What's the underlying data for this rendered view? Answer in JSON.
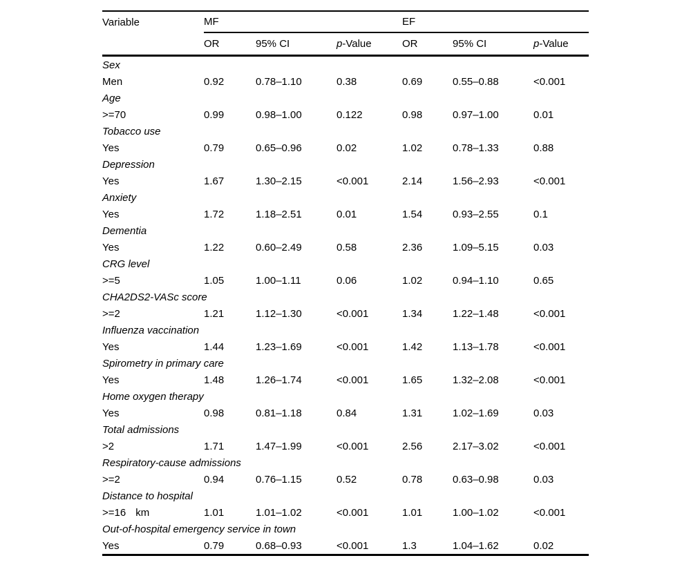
{
  "table": {
    "variable_header": "Variable",
    "group_headers": [
      "MF",
      "EF"
    ],
    "sub_headers": [
      {
        "text": "OR"
      },
      {
        "text": "95% CI"
      },
      {
        "italic": "p",
        "text": "-Value"
      },
      {
        "text": "OR"
      },
      {
        "text": "95% CI"
      },
      {
        "italic": "p",
        "text": "-Value"
      }
    ],
    "groups": [
      {
        "variable": "Sex",
        "level": "Men",
        "mf": {
          "or": "0.92",
          "ci": "0.78–1.10",
          "p": "0.38"
        },
        "ef": {
          "or": "0.69",
          "ci": "0.55–0.88",
          "p": "<0.001"
        }
      },
      {
        "variable": "Age",
        "level": ">=70",
        "mf": {
          "or": "0.99",
          "ci": "0.98–1.00",
          "p": "0.122"
        },
        "ef": {
          "or": "0.98",
          "ci": "0.97–1.00",
          "p": "0.01"
        }
      },
      {
        "variable": "Tobacco use",
        "level": "Yes",
        "mf": {
          "or": "0.79",
          "ci": "0.65–0.96",
          "p": "0.02"
        },
        "ef": {
          "or": "1.02",
          "ci": "0.78–1.33",
          "p": "0.88"
        }
      },
      {
        "variable": "Depression",
        "level": "Yes",
        "mf": {
          "or": "1.67",
          "ci": "1.30–2.15",
          "p": "<0.001"
        },
        "ef": {
          "or": "2.14",
          "ci": "1.56–2.93",
          "p": "<0.001"
        }
      },
      {
        "variable": "Anxiety",
        "level": "Yes",
        "mf": {
          "or": "1.72",
          "ci": "1.18–2.51",
          "p": "0.01"
        },
        "ef": {
          "or": "1.54",
          "ci": "0.93–2.55",
          "p": "0.1"
        }
      },
      {
        "variable": "Dementia",
        "level": "Yes",
        "mf": {
          "or": "1.22",
          "ci": "0.60–2.49",
          "p": "0.58"
        },
        "ef": {
          "or": "2.36",
          "ci": "1.09–5.15",
          "p": "0.03"
        }
      },
      {
        "variable": "CRG level",
        "level": ">=5",
        "mf": {
          "or": "1.05",
          "ci": "1.00–1.11",
          "p": "0.06"
        },
        "ef": {
          "or": "1.02",
          "ci": "0.94–1.10",
          "p": "0.65"
        }
      },
      {
        "variable": "CHA2DS2-VASc score",
        "level": ">=2",
        "mf": {
          "or": "1.21",
          "ci": "1.12–1.30",
          "p": "<0.001"
        },
        "ef": {
          "or": "1.34",
          "ci": "1.22–1.48",
          "p": "<0.001"
        }
      },
      {
        "variable": "Influenza vaccination",
        "level": "Yes",
        "mf": {
          "or": "1.44",
          "ci": "1.23–1.69",
          "p": "<0.001"
        },
        "ef": {
          "or": "1.42",
          "ci": "1.13–1.78",
          "p": "<0.001"
        }
      },
      {
        "variable": "Spirometry in primary care",
        "level": "Yes",
        "mf": {
          "or": "1.48",
          "ci": "1.26–1.74",
          "p": "<0.001"
        },
        "ef": {
          "or": "1.65",
          "ci": "1.32–2.08",
          "p": "<0.001"
        }
      },
      {
        "variable": "Home oxygen therapy",
        "level": "Yes",
        "mf": {
          "or": "0.98",
          "ci": "0.81–1.18",
          "p": "0.84"
        },
        "ef": {
          "or": "1.31",
          "ci": "1.02–1.69",
          "p": "0.03"
        }
      },
      {
        "variable": "Total admissions",
        "level": ">2",
        "mf": {
          "or": "1.71",
          "ci": "1.47–1.99",
          "p": "<0.001"
        },
        "ef": {
          "or": "2.56",
          "ci": "2.17–3.02",
          "p": "<0.001"
        }
      },
      {
        "variable": "Respiratory-cause admissions",
        "level": ">=2",
        "mf": {
          "or": "0.94",
          "ci": "0.76–1.15",
          "p": "0.52"
        },
        "ef": {
          "or": "0.78",
          "ci": "0.63–0.98",
          "p": "0.03"
        }
      },
      {
        "variable": "Distance to hospital",
        "level": ">=16",
        "unit": "km",
        "mf": {
          "or": "1.01",
          "ci": "1.01–1.02",
          "p": "<0.001"
        },
        "ef": {
          "or": "1.01",
          "ci": "1.00–1.02",
          "p": "<0.001"
        }
      },
      {
        "variable": "Out-of-hospital emergency service in town",
        "level": "Yes",
        "mf": {
          "or": "0.79",
          "ci": "0.68–0.93",
          "p": "<0.001"
        },
        "ef": {
          "or": "1.3",
          "ci": "1.04–1.62",
          "p": "0.02"
        }
      }
    ]
  }
}
